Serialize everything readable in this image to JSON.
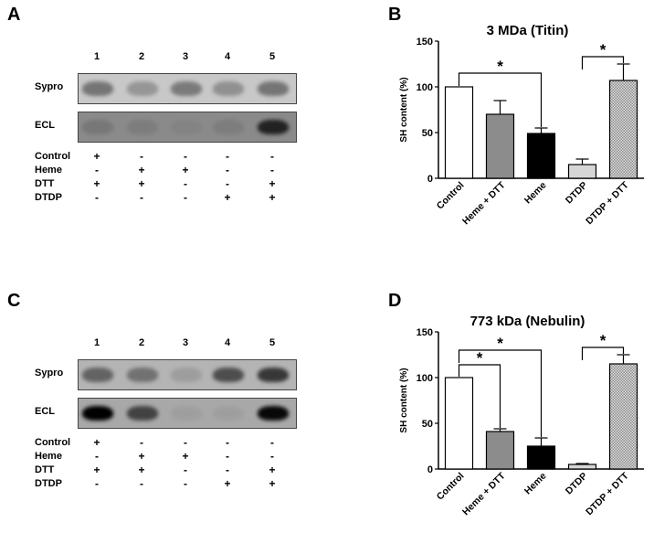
{
  "panels": {
    "A": {
      "letter": "A",
      "lanes": [
        "1",
        "2",
        "3",
        "4",
        "5"
      ],
      "blots": [
        {
          "label": "Sypro",
          "intensities": [
            0.75,
            0.45,
            0.7,
            0.5,
            0.75
          ],
          "bg": "#c8c8c8",
          "band": "#5a5a5a"
        },
        {
          "label": "ECL",
          "intensities": [
            0.15,
            0.1,
            0.05,
            0.1,
            0.85
          ],
          "bg": "#8a8a8a",
          "band": "#101010"
        }
      ],
      "conditions": [
        {
          "label": "Control",
          "signs": [
            "+",
            "-",
            "-",
            "-",
            "-"
          ]
        },
        {
          "label": "Heme",
          "signs": [
            "-",
            "+",
            "+",
            "-",
            "-"
          ]
        },
        {
          "label": "DTT",
          "signs": [
            "+",
            "+",
            "-",
            "-",
            "+"
          ]
        },
        {
          "label": "DTDP",
          "signs": [
            "-",
            "-",
            "-",
            "+",
            "+"
          ]
        }
      ]
    },
    "C": {
      "letter": "C",
      "lanes": [
        "1",
        "2",
        "3",
        "4",
        "5"
      ],
      "blots": [
        {
          "label": "Sypro",
          "intensities": [
            0.55,
            0.45,
            0.15,
            0.7,
            0.85
          ],
          "bg": "#b4b4b4",
          "band": "#222222"
        },
        {
          "label": "ECL",
          "intensities": [
            1.0,
            0.6,
            0.05,
            0.05,
            0.95
          ],
          "bg": "#a8a8a8",
          "band": "#000000"
        }
      ],
      "conditions": [
        {
          "label": "Control",
          "signs": [
            "+",
            "-",
            "-",
            "-",
            "-"
          ]
        },
        {
          "label": "Heme",
          "signs": [
            "-",
            "+",
            "+",
            "-",
            "-"
          ]
        },
        {
          "label": "DTT",
          "signs": [
            "+",
            "+",
            "-",
            "-",
            "+"
          ]
        },
        {
          "label": "DTDP",
          "signs": [
            "-",
            "-",
            "-",
            "+",
            "+"
          ]
        }
      ]
    }
  },
  "chart_data": [
    {
      "letter": "B",
      "type": "bar",
      "title": "3 MDa (Titin)",
      "ylabel": "SH content (%)",
      "xlabel": "",
      "ylim": [
        0,
        150
      ],
      "yticks": [
        0,
        50,
        100,
        150
      ],
      "categories": [
        "Control",
        "Heme + DTT",
        "Heme",
        "DTDP",
        "DTDP + DTT"
      ],
      "values": [
        100,
        70,
        49,
        15,
        107
      ],
      "errors": [
        0,
        15,
        6,
        6,
        18
      ],
      "fills": [
        "white",
        "#8c8c8c",
        "#000000",
        "#d6d6d6",
        "hatch"
      ],
      "significance": [
        {
          "from": 0,
          "to": 2,
          "level": 1,
          "label": "*"
        },
        {
          "from": 3,
          "to": 4,
          "level": 0,
          "label": "*"
        }
      ]
    },
    {
      "letter": "D",
      "type": "bar",
      "title": "773 kDa (Nebulin)",
      "ylabel": "SH content (%)",
      "xlabel": "",
      "ylim": [
        0,
        150
      ],
      "yticks": [
        0,
        50,
        100,
        150
      ],
      "categories": [
        "Control",
        "Heme + DTT",
        "Heme",
        "DTDP",
        "DTDP + DTT"
      ],
      "values": [
        100,
        41,
        25,
        5,
        115
      ],
      "errors": [
        0,
        3,
        9,
        1,
        10
      ],
      "fills": [
        "white",
        "#8c8c8c",
        "#000000",
        "#d6d6d6",
        "hatch"
      ],
      "significance": [
        {
          "from": 0,
          "to": 1,
          "level": 0,
          "label": "*"
        },
        {
          "from": 0,
          "to": 2,
          "level": 1,
          "label": "*"
        },
        {
          "from": 3,
          "to": 4,
          "level": 0,
          "label": "*"
        }
      ]
    }
  ]
}
